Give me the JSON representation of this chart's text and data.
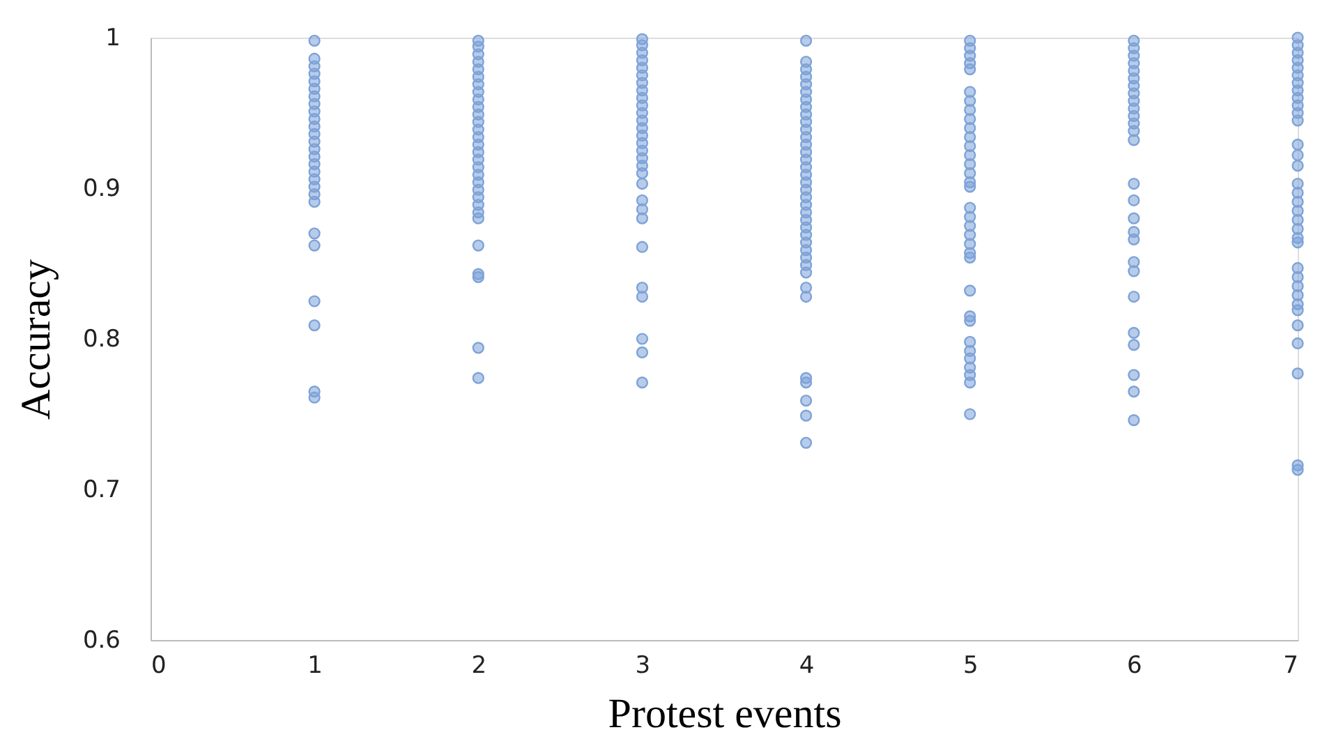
{
  "chart_data": {
    "type": "scatter",
    "xlabel": "Protest events",
    "ylabel": "Accuracy",
    "xlim": [
      0,
      7
    ],
    "xticks": [
      0,
      1,
      2,
      3,
      4,
      5,
      6,
      7
    ],
    "ylim": [
      0.6,
      1
    ],
    "yticks": [
      0.6,
      0.7,
      0.8,
      0.9,
      1
    ],
    "grid": false,
    "marker": "circle",
    "series": [
      {
        "color": "#7da3d8",
        "x": [
          1,
          1,
          1,
          1,
          1,
          1,
          1,
          1,
          1,
          1,
          1,
          1,
          1,
          1,
          1,
          1,
          1,
          1,
          1,
          1,
          1,
          1,
          1,
          1,
          1,
          1,
          1,
          2,
          2,
          2,
          2,
          2,
          2,
          2,
          2,
          2,
          2,
          2,
          2,
          2,
          2,
          2,
          2,
          2,
          2,
          2,
          2,
          2,
          2,
          2,
          2,
          2,
          2,
          2,
          2,
          2,
          2,
          3,
          3,
          3,
          3,
          3,
          3,
          3,
          3,
          3,
          3,
          3,
          3,
          3,
          3,
          3,
          3,
          3,
          3,
          3,
          3,
          3,
          3,
          3,
          3,
          3,
          3,
          3,
          3,
          3,
          4,
          4,
          4,
          4,
          4,
          4,
          4,
          4,
          4,
          4,
          4,
          4,
          4,
          4,
          4,
          4,
          4,
          4,
          4,
          4,
          4,
          4,
          4,
          4,
          4,
          4,
          4,
          4,
          4,
          4,
          4,
          4,
          4,
          4,
          4,
          4,
          4,
          5,
          5,
          5,
          5,
          5,
          5,
          5,
          5,
          5,
          5,
          5,
          5,
          5,
          5,
          5,
          5,
          5,
          5,
          5,
          5,
          5,
          5,
          5,
          5,
          5,
          5,
          5,
          5,
          5,
          5,
          5,
          5,
          5,
          5,
          6,
          6,
          6,
          6,
          6,
          6,
          6,
          6,
          6,
          6,
          6,
          6,
          6,
          6,
          6,
          6,
          6,
          6,
          6,
          6,
          6,
          6,
          6,
          6,
          6,
          6,
          6,
          7,
          7,
          7,
          7,
          7,
          7,
          7,
          7,
          7,
          7,
          7,
          7,
          7,
          7,
          7,
          7,
          7,
          7,
          7,
          7,
          7,
          7,
          7,
          7,
          7,
          7,
          7,
          7,
          7,
          7,
          7,
          7,
          7,
          7
        ],
        "values": [
          0.998,
          0.986,
          0.981,
          0.976,
          0.971,
          0.966,
          0.961,
          0.956,
          0.951,
          0.946,
          0.941,
          0.936,
          0.931,
          0.926,
          0.921,
          0.916,
          0.911,
          0.906,
          0.901,
          0.896,
          0.891,
          0.87,
          0.862,
          0.825,
          0.809,
          0.765,
          0.761,
          0.998,
          0.994,
          0.989,
          0.984,
          0.979,
          0.974,
          0.969,
          0.964,
          0.959,
          0.954,
          0.949,
          0.944,
          0.939,
          0.934,
          0.929,
          0.924,
          0.919,
          0.914,
          0.909,
          0.904,
          0.899,
          0.894,
          0.889,
          0.884,
          0.88,
          0.862,
          0.843,
          0.841,
          0.794,
          0.774,
          0.999,
          0.995,
          0.99,
          0.985,
          0.98,
          0.975,
          0.97,
          0.965,
          0.96,
          0.955,
          0.95,
          0.945,
          0.94,
          0.935,
          0.93,
          0.925,
          0.92,
          0.915,
          0.91,
          0.903,
          0.892,
          0.886,
          0.88,
          0.861,
          0.834,
          0.828,
          0.8,
          0.791,
          0.771,
          0.998,
          0.984,
          0.979,
          0.974,
          0.969,
          0.964,
          0.959,
          0.954,
          0.949,
          0.944,
          0.939,
          0.934,
          0.929,
          0.924,
          0.919,
          0.914,
          0.909,
          0.904,
          0.899,
          0.894,
          0.889,
          0.884,
          0.879,
          0.874,
          0.869,
          0.864,
          0.859,
          0.854,
          0.849,
          0.844,
          0.834,
          0.828,
          0.774,
          0.771,
          0.759,
          0.749,
          0.731,
          0.998,
          0.993,
          0.988,
          0.983,
          0.979,
          0.964,
          0.958,
          0.952,
          0.946,
          0.94,
          0.934,
          0.928,
          0.922,
          0.916,
          0.91,
          0.904,
          0.901,
          0.887,
          0.881,
          0.875,
          0.869,
          0.863,
          0.857,
          0.854,
          0.832,
          0.815,
          0.812,
          0.798,
          0.792,
          0.787,
          0.781,
          0.776,
          0.771,
          0.75,
          0.998,
          0.993,
          0.988,
          0.983,
          0.978,
          0.973,
          0.968,
          0.963,
          0.958,
          0.953,
          0.948,
          0.943,
          0.938,
          0.932,
          0.903,
          0.892,
          0.88,
          0.871,
          0.866,
          0.851,
          0.845,
          0.828,
          0.804,
          0.796,
          0.776,
          0.765,
          0.746,
          1.0,
          0.995,
          0.99,
          0.985,
          0.98,
          0.975,
          0.97,
          0.965,
          0.96,
          0.955,
          0.95,
          0.945,
          0.929,
          0.922,
          0.915,
          0.903,
          0.897,
          0.891,
          0.885,
          0.879,
          0.873,
          0.867,
          0.864,
          0.847,
          0.841,
          0.835,
          0.829,
          0.823,
          0.819,
          0.809,
          0.797,
          0.777,
          0.716,
          0.713
        ]
      }
    ]
  }
}
